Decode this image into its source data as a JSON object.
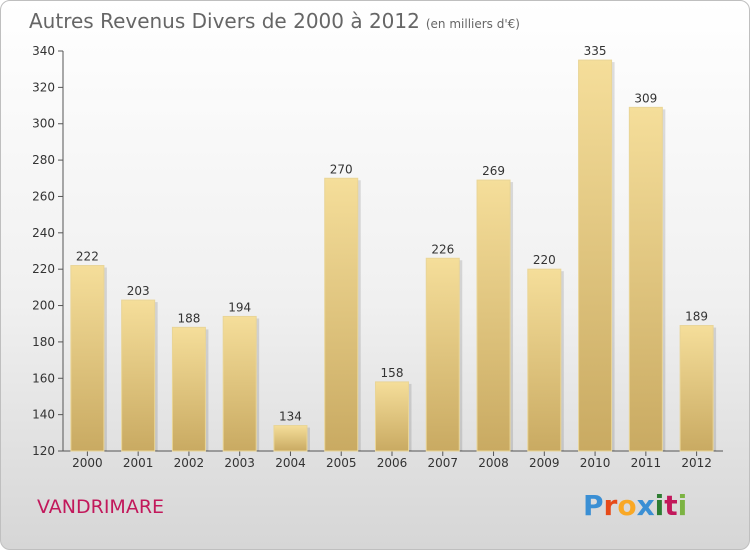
{
  "header": {
    "title": "Autres Revenus Divers de 2000 à 2012",
    "unit": "(en milliers d'€)"
  },
  "footer": {
    "place": "VANDRIMARE",
    "logo_letters": [
      "P",
      "r",
      "o",
      "x",
      "i",
      "t",
      "i"
    ],
    "logo_colors": [
      "#3a8fd4",
      "#e64a19",
      "#f9a825",
      "#3a8fd4",
      "#2e7d32",
      "#c2185b",
      "#7cb342"
    ]
  },
  "chart_data": {
    "type": "bar",
    "title": "Autres Revenus Divers de 2000 à 2012",
    "subtitle": "(en milliers d'€)",
    "xlabel": "",
    "ylabel": "",
    "categories": [
      "2000",
      "2001",
      "2002",
      "2003",
      "2004",
      "2005",
      "2006",
      "2007",
      "2008",
      "2009",
      "2010",
      "2011",
      "2012"
    ],
    "values": [
      222,
      203,
      188,
      194,
      134,
      270,
      158,
      226,
      269,
      220,
      335,
      309,
      189
    ],
    "ylim": [
      120,
      340
    ],
    "yticks": [
      120,
      140,
      160,
      180,
      200,
      220,
      240,
      260,
      280,
      300,
      320,
      340
    ],
    "grid": false,
    "bar_color": "#e8cf86"
  }
}
